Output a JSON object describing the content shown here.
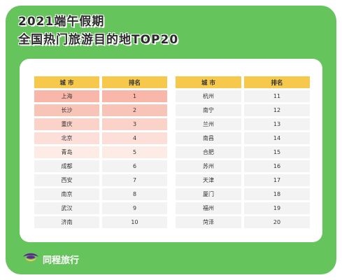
{
  "title": {
    "line1": "2021端午假期",
    "line2": "全国热门旅游目的地TOP20"
  },
  "table": {
    "headers": [
      "城 市",
      "排名",
      "城 市",
      "排名"
    ],
    "rows": [
      {
        "city_a": "上海",
        "rank_a": "1",
        "city_b": "杭州",
        "rank_b": "11",
        "bg": "#f8b7a8"
      },
      {
        "city_a": "长沙",
        "rank_a": "2",
        "city_b": "南宁",
        "rank_b": "12",
        "bg": "#f9c4b8"
      },
      {
        "city_a": "重庆",
        "rank_a": "3",
        "city_b": "兰州",
        "rank_b": "13",
        "bg": "#fbd2c8"
      },
      {
        "city_a": "北京",
        "rank_a": "4",
        "city_b": "南昌",
        "rank_b": "14",
        "bg": "#fcdfd8"
      },
      {
        "city_a": "青岛",
        "rank_a": "5",
        "city_b": "合肥",
        "rank_b": "15",
        "bg": "#fdebe6"
      },
      {
        "city_a": "成都",
        "rank_a": "6",
        "city_b": "苏州",
        "rank_b": "16",
        "bg": "#f3f3f3"
      },
      {
        "city_a": "西安",
        "rank_a": "7",
        "city_b": "天津",
        "rank_b": "17",
        "bg": "#f3f3f3"
      },
      {
        "city_a": "南京",
        "rank_a": "8",
        "city_b": "厦门",
        "rank_b": "18",
        "bg": "#f3f3f3"
      },
      {
        "city_a": "武汉",
        "rank_a": "9",
        "city_b": "福州",
        "rank_b": "19",
        "bg": "#f3f3f3"
      },
      {
        "city_a": "济南",
        "rank_a": "10",
        "city_b": "菏泽",
        "rank_b": "20",
        "bg": "#f3f3f3"
      }
    ]
  },
  "brand": {
    "logo_icon": "tongcheng-logo-icon",
    "name": "同程旅行"
  },
  "colors": {
    "frame": "#66c45c",
    "header": "#f6c84c",
    "logo_purple": "#5b2a8c",
    "logo_yellow": "#f6c84c"
  }
}
